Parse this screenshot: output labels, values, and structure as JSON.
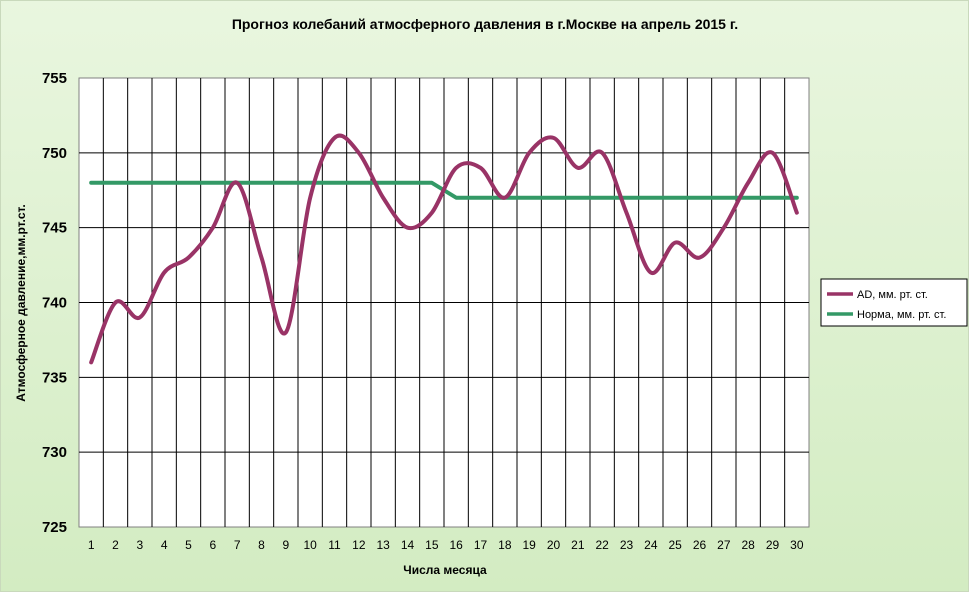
{
  "chart_data": {
    "type": "line",
    "title": "Прогноз колебаний атмосферного давления в г.Москве на апрель 2015 г.",
    "xlabel": "Числа месяца",
    "ylabel": "Атмосферное давление,мм.рт.ст.",
    "x": [
      1,
      2,
      3,
      4,
      5,
      6,
      7,
      8,
      9,
      10,
      11,
      12,
      13,
      14,
      15,
      16,
      17,
      18,
      19,
      20,
      21,
      22,
      23,
      24,
      25,
      26,
      27,
      28,
      29,
      30
    ],
    "ylim": [
      725,
      755
    ],
    "yticks": [
      725,
      730,
      735,
      740,
      745,
      750,
      755
    ],
    "grid": true,
    "legend_position": "right",
    "series": [
      {
        "name": "АD, мм. рт. ст.",
        "color": "#993366",
        "values": [
          736,
          740,
          739,
          742,
          743,
          745,
          748,
          743,
          738,
          747,
          751,
          750,
          747,
          745,
          746,
          749,
          749,
          747,
          750,
          751,
          749,
          750,
          746,
          742,
          744,
          743,
          745,
          748,
          750,
          746
        ]
      },
      {
        "name": "Норма, мм. рт. ст.",
        "color": "#339966",
        "values": [
          748,
          748,
          748,
          748,
          748,
          748,
          748,
          748,
          748,
          748,
          748,
          748,
          748,
          748,
          748,
          747,
          747,
          747,
          747,
          747,
          747,
          747,
          747,
          747,
          747,
          747,
          747,
          747,
          747,
          747
        ]
      }
    ]
  }
}
